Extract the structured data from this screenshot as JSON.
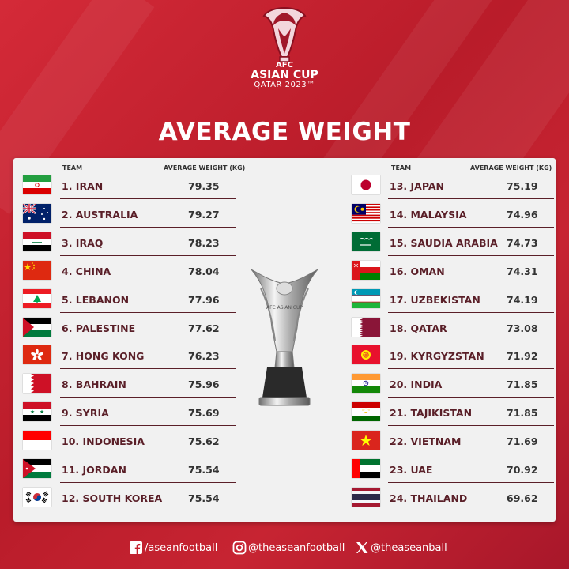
{
  "logo": {
    "line1": "AFC",
    "line2": "ASIAN CUP",
    "line3": "QATAR 2023™"
  },
  "title": "AVERAGE WEIGHT",
  "headers": {
    "team": "TEAM",
    "weight": "AVERAGE WEIGHT (KG)"
  },
  "trophy": {
    "text": "AFC ASIAN CUP"
  },
  "left": [
    {
      "team": "1. IRAN",
      "value": "79.35",
      "flag": "iran-flag"
    },
    {
      "team": "2. AUSTRALIA",
      "value": "79.27",
      "flag": "australia-flag"
    },
    {
      "team": "3. IRAQ",
      "value": "78.23",
      "flag": "iraq-flag"
    },
    {
      "team": "4. CHINA",
      "value": "78.04",
      "flag": "china-flag"
    },
    {
      "team": "5. LEBANON",
      "value": "77.96",
      "flag": "lebanon-flag"
    },
    {
      "team": "6. PALESTINE",
      "value": "77.62",
      "flag": "palestine-flag"
    },
    {
      "team": "7. HONG KONG",
      "value": "76.23",
      "flag": "hong-kong-flag"
    },
    {
      "team": "8. BAHRAIN",
      "value": "75.96",
      "flag": "bahrain-flag"
    },
    {
      "team": "9. SYRIA",
      "value": "75.69",
      "flag": "syria-flag"
    },
    {
      "team": "10. INDONESIA",
      "value": "75.62",
      "flag": "indonesia-flag"
    },
    {
      "team": "11. JORDAN",
      "value": "75.54",
      "flag": "jordan-flag"
    },
    {
      "team": "12. SOUTH KOREA",
      "value": "75.54",
      "flag": "south-korea-flag"
    }
  ],
  "right": [
    {
      "team": "13. JAPAN",
      "value": "75.19",
      "flag": "japan-flag"
    },
    {
      "team": "14. MALAYSIA",
      "value": "74.96",
      "flag": "malaysia-flag"
    },
    {
      "team": "15. SAUDIA ARABIA",
      "value": "74.73",
      "flag": "saudi-arabia-flag"
    },
    {
      "team": "16. OMAN",
      "value": "74.31",
      "flag": "oman-flag"
    },
    {
      "team": "17. UZBEKISTAN",
      "value": "74.19",
      "flag": "uzbekistan-flag"
    },
    {
      "team": "18. QATAR",
      "value": "73.08",
      "flag": "qatar-flag"
    },
    {
      "team": "19. KYRGYZSTAN",
      "value": "71.92",
      "flag": "kyrgyzstan-flag"
    },
    {
      "team": "20. INDIA",
      "value": "71.85",
      "flag": "india-flag"
    },
    {
      "team": "21. TAJIKISTAN",
      "value": "71.85",
      "flag": "tajikistan-flag"
    },
    {
      "team": "22. VIETNAM",
      "value": "71.69",
      "flag": "vietnam-flag"
    },
    {
      "team": "23. UAE",
      "value": "70.92",
      "flag": "uae-flag"
    },
    {
      "team": "24. THAILAND",
      "value": "69.62",
      "flag": "thailand-flag"
    }
  ],
  "footer": {
    "facebook": "/aseanfootball",
    "instagram": "@theaseanfootball",
    "x": "@theaseanball"
  },
  "colors": {
    "background": "#c41f2c",
    "panel": "#f1f1f1",
    "team_text": "#5a1f28",
    "value_text": "#333333"
  }
}
